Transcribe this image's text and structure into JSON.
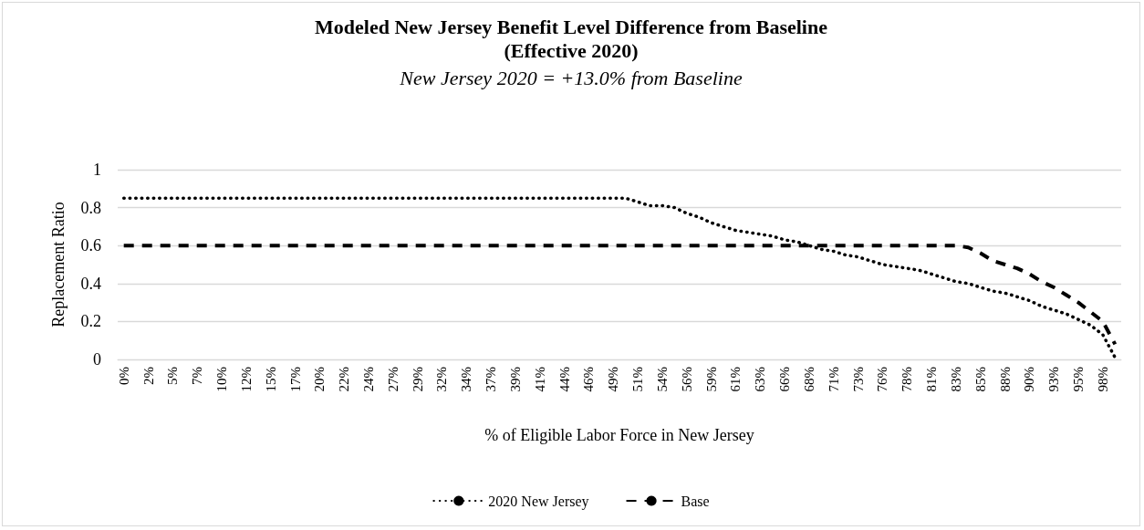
{
  "chart_data": {
    "type": "line",
    "title": "Modeled New Jersey Benefit Level Difference from Baseline\n(Effective 2020)",
    "subtitle": "New Jersey 2020 = +13.0% from Baseline",
    "xlabel": "% of Eligible Labor Force in New Jersey",
    "ylabel": "Replacement Ratio",
    "categories": [
      "0%",
      null,
      "2%",
      null,
      "5%",
      null,
      "7%",
      null,
      "10%",
      null,
      "12%",
      null,
      "15%",
      null,
      "17%",
      null,
      "20%",
      null,
      "22%",
      null,
      "24%",
      null,
      "27%",
      null,
      "29%",
      null,
      "32%",
      null,
      "34%",
      null,
      "37%",
      null,
      "39%",
      null,
      "41%",
      null,
      "44%",
      null,
      "46%",
      null,
      "49%",
      null,
      "51%",
      null,
      "54%",
      null,
      "56%",
      null,
      "59%",
      null,
      "61%",
      null,
      "63%",
      null,
      "66%",
      null,
      "68%",
      null,
      "71%",
      null,
      "73%",
      null,
      "76%",
      null,
      "78%",
      null,
      "81%",
      null,
      "83%",
      null,
      "85%",
      null,
      "88%",
      null,
      "90%",
      null,
      "93%",
      null,
      "95%",
      null,
      "98%",
      null
    ],
    "series": [
      {
        "name": "2020 New Jersey",
        "color": "#000000",
        "line_style": "dotted",
        "values": [
          0.85,
          0.85,
          0.85,
          0.85,
          0.85,
          0.85,
          0.85,
          0.85,
          0.85,
          0.85,
          0.85,
          0.85,
          0.85,
          0.85,
          0.85,
          0.85,
          0.85,
          0.85,
          0.85,
          0.85,
          0.85,
          0.85,
          0.85,
          0.85,
          0.85,
          0.85,
          0.85,
          0.85,
          0.85,
          0.85,
          0.85,
          0.85,
          0.85,
          0.85,
          0.85,
          0.85,
          0.85,
          0.85,
          0.85,
          0.85,
          0.85,
          0.85,
          0.83,
          0.81,
          0.81,
          0.8,
          0.77,
          0.75,
          0.72,
          0.7,
          0.68,
          0.67,
          0.66,
          0.65,
          0.63,
          0.62,
          0.6,
          0.58,
          0.57,
          0.55,
          0.54,
          0.52,
          0.5,
          0.49,
          0.48,
          0.47,
          0.45,
          0.43,
          0.41,
          0.4,
          0.38,
          0.36,
          0.35,
          0.33,
          0.31,
          0.28,
          0.26,
          0.24,
          0.21,
          0.18,
          0.13,
          0.01
        ]
      },
      {
        "name": "Base",
        "color": "#000000",
        "line_style": "dashed",
        "values": [
          0.6,
          0.6,
          0.6,
          0.6,
          0.6,
          0.6,
          0.6,
          0.6,
          0.6,
          0.6,
          0.6,
          0.6,
          0.6,
          0.6,
          0.6,
          0.6,
          0.6,
          0.6,
          0.6,
          0.6,
          0.6,
          0.6,
          0.6,
          0.6,
          0.6,
          0.6,
          0.6,
          0.6,
          0.6,
          0.6,
          0.6,
          0.6,
          0.6,
          0.6,
          0.6,
          0.6,
          0.6,
          0.6,
          0.6,
          0.6,
          0.6,
          0.6,
          0.6,
          0.6,
          0.6,
          0.6,
          0.6,
          0.6,
          0.6,
          0.6,
          0.6,
          0.6,
          0.6,
          0.6,
          0.6,
          0.6,
          0.6,
          0.6,
          0.6,
          0.6,
          0.6,
          0.6,
          0.6,
          0.6,
          0.6,
          0.6,
          0.6,
          0.6,
          0.6,
          0.59,
          0.56,
          0.52,
          0.5,
          0.48,
          0.45,
          0.41,
          0.38,
          0.34,
          0.3,
          0.25,
          0.2,
          0.08
        ]
      }
    ],
    "ylim": [
      0,
      1
    ],
    "yticks": [
      0,
      0.2,
      0.4,
      0.6,
      0.8,
      1
    ],
    "grid": "y",
    "legend": "bottom",
    "marker": "none"
  }
}
